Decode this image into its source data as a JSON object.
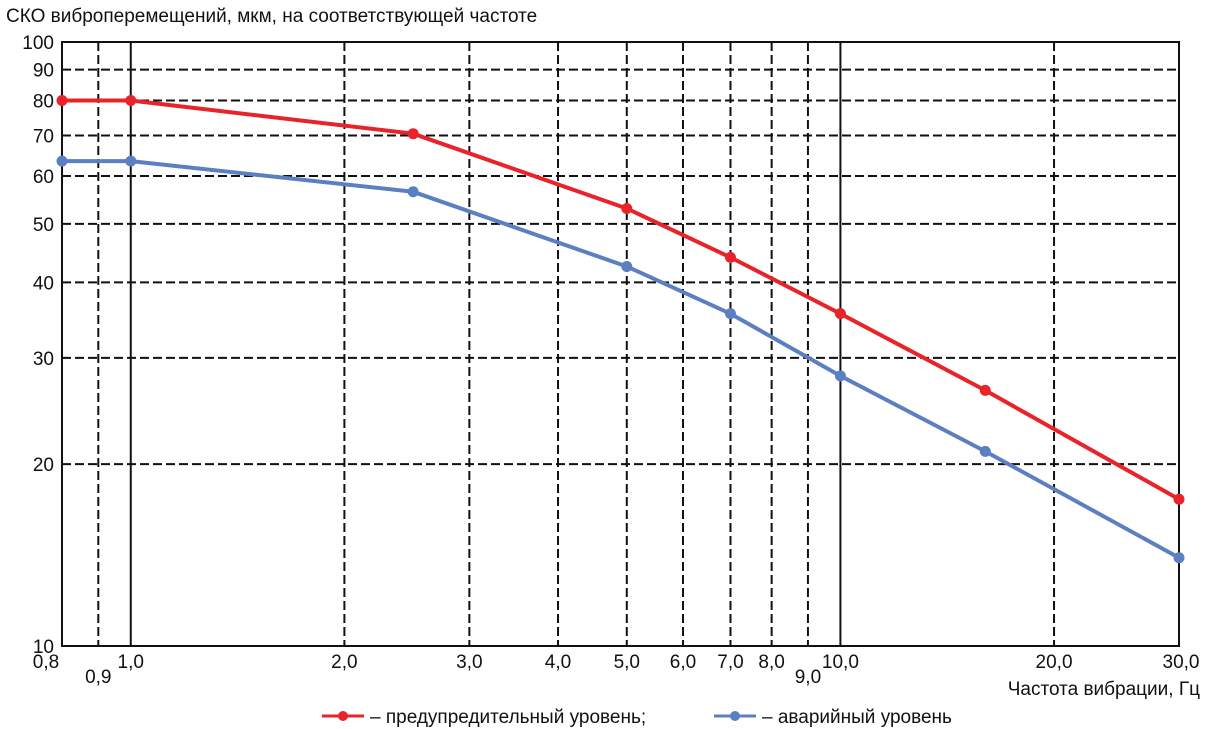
{
  "chart_data": {
    "type": "line",
    "ylabel": "СКО виброперемещений, мкм, на соответствующей частоте",
    "xlabel": "Частота вибрации, Гц",
    "x_scale": "log",
    "y_scale": "log",
    "xlim": [
      0.8,
      30.0
    ],
    "ylim": [
      10,
      100
    ],
    "grid": true,
    "x_ticks": [
      {
        "value": 0.8,
        "label": "0,8"
      },
      {
        "value": 0.9,
        "label": "0,9"
      },
      {
        "value": 1.0,
        "label": "1,0"
      },
      {
        "value": 2.0,
        "label": "2,0"
      },
      {
        "value": 3.0,
        "label": "3,0"
      },
      {
        "value": 4.0,
        "label": "4,0"
      },
      {
        "value": 5.0,
        "label": "5,0"
      },
      {
        "value": 6.0,
        "label": "6,0"
      },
      {
        "value": 7.0,
        "label": "7,0"
      },
      {
        "value": 8.0,
        "label": "8,0"
      },
      {
        "value": 9.0,
        "label": "9,0"
      },
      {
        "value": 10.0,
        "label": "10,0"
      },
      {
        "value": 20.0,
        "label": "20,0"
      },
      {
        "value": 30.0,
        "label": "30,0"
      }
    ],
    "y_ticks": [
      {
        "value": 10,
        "label": "10"
      },
      {
        "value": 20,
        "label": "20"
      },
      {
        "value": 30,
        "label": "30"
      },
      {
        "value": 40,
        "label": "40"
      },
      {
        "value": 50,
        "label": "50"
      },
      {
        "value": 60,
        "label": "60"
      },
      {
        "value": 70,
        "label": "70"
      },
      {
        "value": 80,
        "label": "80"
      },
      {
        "value": 90,
        "label": "90"
      },
      {
        "value": 100,
        "label": "100"
      }
    ],
    "solid_grid_x": [
      1.0,
      10.0
    ],
    "series": [
      {
        "name": "– предупредительный уровень;",
        "color": "#e8232a",
        "points": [
          [
            0.8,
            80
          ],
          [
            1.0,
            80
          ],
          [
            2.5,
            70.5
          ],
          [
            5.0,
            53
          ],
          [
            7.0,
            44
          ],
          [
            10.0,
            35.5
          ],
          [
            16.0,
            26.5
          ],
          [
            30.0,
            17.5
          ]
        ]
      },
      {
        "name": "– аварийный уровень",
        "color": "#5b7fc0",
        "points": [
          [
            0.8,
            63.5
          ],
          [
            1.0,
            63.5
          ],
          [
            2.5,
            56.5
          ],
          [
            5.0,
            42.5
          ],
          [
            7.0,
            35.5
          ],
          [
            10.0,
            28
          ],
          [
            16.0,
            21
          ],
          [
            30.0,
            14
          ]
        ]
      }
    ],
    "legend_position": "bottom-center"
  }
}
